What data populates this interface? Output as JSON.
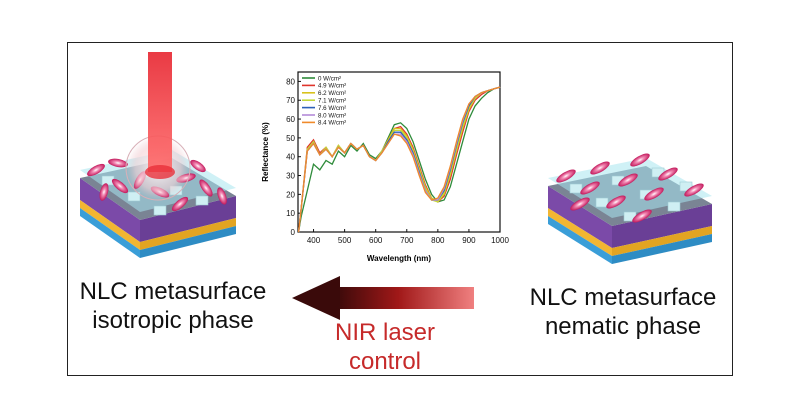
{
  "left_label": {
    "line1": "NLC metasurface",
    "line2": "isotropic phase"
  },
  "right_label": {
    "line1": "NLC metasurface",
    "line2": "nematic phase"
  },
  "arrow_label": {
    "line1": "NIR laser",
    "line2": "control"
  },
  "colors": {
    "laser": "#e8303a",
    "arrow_dark": "#3a0a0a",
    "arrow_light": "#f08080",
    "arrow_text": "#c62a2a"
  },
  "chart_data": {
    "type": "line",
    "title": "",
    "xlabel": "Wavelength (nm)",
    "ylabel": "Reflectance (%)",
    "xlim": [
      350,
      1000
    ],
    "ylim": [
      0,
      85
    ],
    "xticks": [
      400,
      500,
      600,
      700,
      800,
      900,
      1000
    ],
    "yticks": [
      0,
      10,
      20,
      30,
      40,
      50,
      60,
      70,
      80
    ],
    "legend_position": "top-left",
    "series": [
      {
        "name": "0 W/cm²",
        "color": "#2e8b3a",
        "x": [
          352,
          360,
          380,
          400,
          420,
          440,
          460,
          480,
          500,
          520,
          540,
          560,
          580,
          600,
          620,
          640,
          660,
          680,
          700,
          720,
          740,
          760,
          780,
          800,
          820,
          840,
          860,
          880,
          900,
          920,
          940,
          960,
          980,
          1000
        ],
        "y": [
          0,
          8,
          22,
          36,
          33,
          38,
          36,
          43,
          40,
          46,
          43,
          47,
          41,
          39,
          43,
          50,
          57,
          58,
          55,
          48,
          38,
          28,
          20,
          16,
          17,
          24,
          36,
          48,
          60,
          67,
          71,
          74,
          76,
          77
        ]
      },
      {
        "name": "4.9 W/cm²",
        "color": "#e0342c",
        "x": [
          352,
          360,
          380,
          400,
          420,
          440,
          460,
          480,
          500,
          520,
          540,
          560,
          580,
          600,
          620,
          640,
          660,
          680,
          700,
          720,
          740,
          760,
          780,
          800,
          820,
          840,
          860,
          880,
          900,
          920,
          940,
          960,
          980,
          1000
        ],
        "y": [
          0,
          12,
          45,
          49,
          42,
          45,
          40,
          46,
          42,
          47,
          44,
          46,
          40,
          38,
          43,
          49,
          55,
          56,
          52,
          45,
          35,
          25,
          18,
          16,
          19,
          28,
          41,
          53,
          64,
          70,
          73,
          75,
          76,
          77
        ]
      },
      {
        "name": "6.2 W/cm²",
        "color": "#d8c21c",
        "x": [
          352,
          360,
          380,
          400,
          420,
          440,
          460,
          480,
          500,
          520,
          540,
          560,
          580,
          600,
          620,
          640,
          660,
          680,
          700,
          720,
          740,
          760,
          780,
          800,
          820,
          840,
          860,
          880,
          900,
          920,
          940,
          960,
          980,
          1000
        ],
        "y": [
          0,
          12,
          44,
          48,
          41,
          45,
          40,
          46,
          42,
          47,
          44,
          46,
          40,
          38,
          43,
          49,
          55,
          55,
          51,
          44,
          34,
          24,
          18,
          16,
          20,
          30,
          43,
          55,
          65,
          71,
          74,
          75,
          76,
          77
        ]
      },
      {
        "name": "7.1 W/cm²",
        "color": "#c3d83a",
        "x": [
          352,
          360,
          380,
          400,
          420,
          440,
          460,
          480,
          500,
          520,
          540,
          560,
          580,
          600,
          620,
          640,
          660,
          680,
          700,
          720,
          740,
          760,
          780,
          800,
          820,
          840,
          860,
          880,
          900,
          920,
          940,
          960,
          980,
          1000
        ],
        "y": [
          0,
          12,
          44,
          48,
          41,
          45,
          40,
          46,
          42,
          47,
          44,
          46,
          40,
          38,
          43,
          48,
          54,
          54,
          50,
          43,
          33,
          23,
          17,
          16,
          21,
          31,
          44,
          56,
          66,
          71,
          74,
          75,
          76,
          77
        ]
      },
      {
        "name": "7.6 W/cm²",
        "color": "#2c5fb8",
        "x": [
          352,
          360,
          380,
          400,
          420,
          440,
          460,
          480,
          500,
          520,
          540,
          560,
          580,
          600,
          620,
          640,
          660,
          680,
          700,
          720,
          740,
          760,
          780,
          800,
          820,
          840,
          860,
          880,
          900,
          920,
          940,
          960,
          980,
          1000
        ],
        "y": [
          0,
          12,
          43,
          47,
          41,
          44,
          40,
          45,
          42,
          47,
          44,
          46,
          40,
          38,
          42,
          48,
          53,
          53,
          49,
          42,
          32,
          22,
          17,
          17,
          22,
          33,
          46,
          58,
          67,
          72,
          74,
          75,
          76,
          77
        ]
      },
      {
        "name": "8.0 W/cm²",
        "color": "#b48ad8",
        "x": [
          352,
          360,
          380,
          400,
          420,
          440,
          460,
          480,
          500,
          520,
          540,
          560,
          580,
          600,
          620,
          640,
          660,
          680,
          700,
          720,
          740,
          760,
          780,
          800,
          820,
          840,
          860,
          880,
          900,
          920,
          940,
          960,
          980,
          1000
        ],
        "y": [
          0,
          12,
          43,
          47,
          41,
          44,
          40,
          45,
          42,
          47,
          44,
          46,
          40,
          38,
          42,
          47,
          52,
          52,
          48,
          41,
          31,
          22,
          17,
          17,
          23,
          34,
          47,
          59,
          68,
          72,
          74,
          75,
          76,
          77
        ]
      },
      {
        "name": "8.4 W/cm²",
        "color": "#f08a2a",
        "x": [
          352,
          360,
          380,
          400,
          420,
          440,
          460,
          480,
          500,
          520,
          540,
          560,
          580,
          600,
          620,
          640,
          660,
          680,
          700,
          720,
          740,
          760,
          780,
          800,
          820,
          840,
          860,
          880,
          900,
          920,
          940,
          960,
          980,
          1000
        ],
        "y": [
          0,
          12,
          43,
          47,
          41,
          44,
          40,
          45,
          42,
          47,
          44,
          46,
          40,
          38,
          42,
          47,
          52,
          51,
          47,
          40,
          30,
          21,
          17,
          18,
          24,
          35,
          48,
          60,
          68,
          72,
          74,
          75,
          76,
          77
        ]
      }
    ]
  }
}
